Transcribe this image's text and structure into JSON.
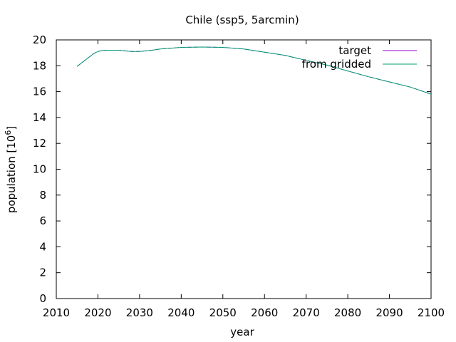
{
  "chart_data": {
    "type": "line",
    "title": "Chile (ssp5, 5arcmin)",
    "xlabel": "year",
    "ylabel_text": "population [10",
    "ylabel_sup": "6",
    "ylabel_close": "]",
    "xlim": [
      2010,
      2100
    ],
    "ylim": [
      0,
      20
    ],
    "xticks": [
      2010,
      2020,
      2030,
      2040,
      2050,
      2060,
      2070,
      2080,
      2090,
      2100
    ],
    "yticks": [
      0,
      2,
      4,
      6,
      8,
      10,
      12,
      14,
      16,
      18,
      20
    ],
    "legend_position": "top-right",
    "grid": false,
    "series": [
      {
        "name": "target",
        "color": "#9400d3",
        "dashed": true,
        "x": [
          2015,
          2017,
          2019,
          2020,
          2021,
          2022,
          2025,
          2028,
          2030,
          2033,
          2035,
          2040,
          2045,
          2050,
          2055,
          2060,
          2065,
          2070,
          2075,
          2080,
          2085,
          2090,
          2095,
          2100
        ],
        "y": [
          17.95,
          18.45,
          18.95,
          19.1,
          19.18,
          19.2,
          19.2,
          19.1,
          19.1,
          19.2,
          19.3,
          19.42,
          19.45,
          19.42,
          19.3,
          19.05,
          18.8,
          18.42,
          18.05,
          17.6,
          17.15,
          16.75,
          16.35,
          15.8
        ]
      },
      {
        "name": "from gridded",
        "color": "#009e73",
        "dashed": false,
        "x": [
          2015,
          2017,
          2019,
          2020,
          2021,
          2022,
          2025,
          2028,
          2030,
          2033,
          2035,
          2040,
          2045,
          2050,
          2055,
          2060,
          2065,
          2070,
          2075,
          2080,
          2085,
          2090,
          2095,
          2100
        ],
        "y": [
          17.95,
          18.45,
          18.95,
          19.1,
          19.18,
          19.2,
          19.2,
          19.1,
          19.1,
          19.2,
          19.3,
          19.42,
          19.45,
          19.42,
          19.3,
          19.05,
          18.8,
          18.42,
          18.05,
          17.6,
          17.15,
          16.75,
          16.35,
          15.8
        ]
      }
    ]
  }
}
